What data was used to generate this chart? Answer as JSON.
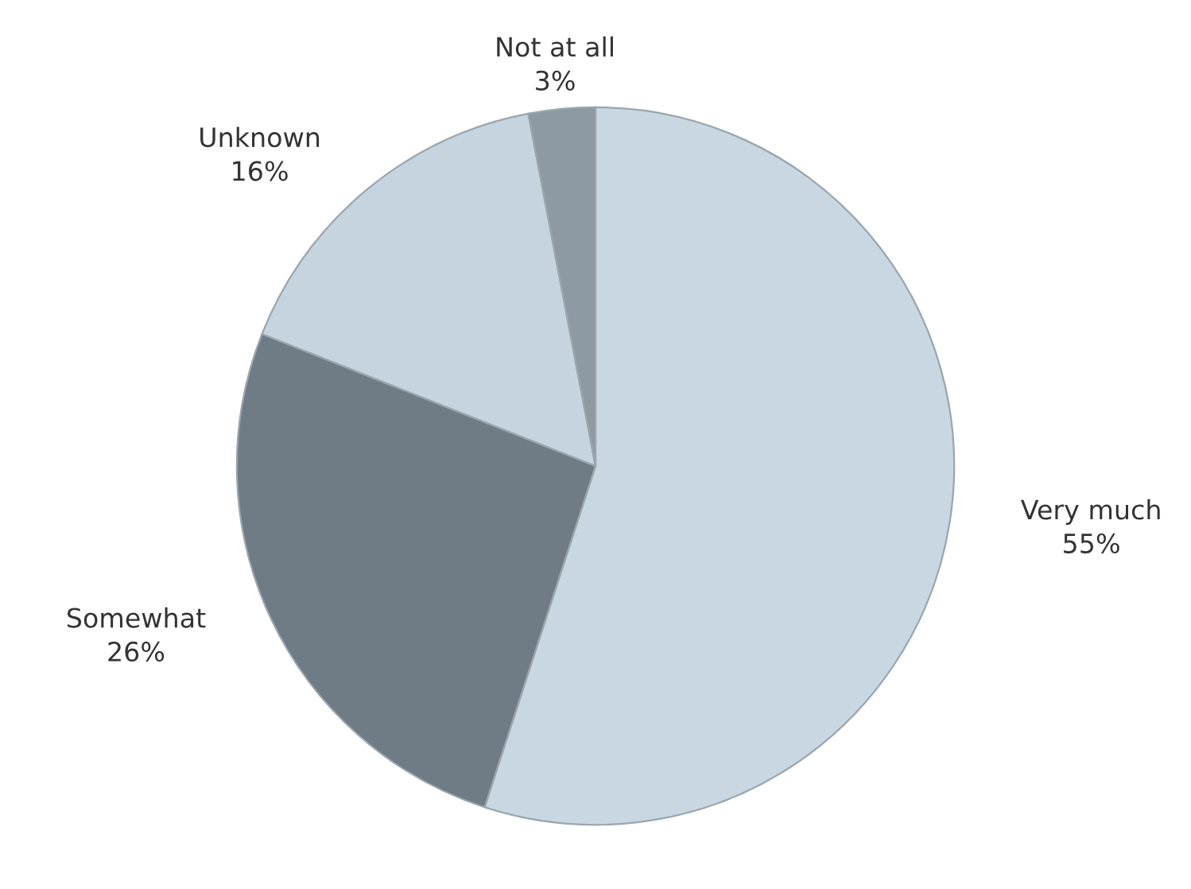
{
  "chart_data": {
    "type": "pie",
    "categories": [
      "Very much",
      "Somewhat",
      "Unknown",
      "Not at all"
    ],
    "values": [
      55,
      26,
      16,
      3
    ],
    "value_labels": [
      "55%",
      "26%",
      "16%",
      "3%"
    ],
    "colors": [
      "#c9d7e2",
      "#6f7c86",
      "#c5d4df",
      "#8d9aa3"
    ]
  }
}
